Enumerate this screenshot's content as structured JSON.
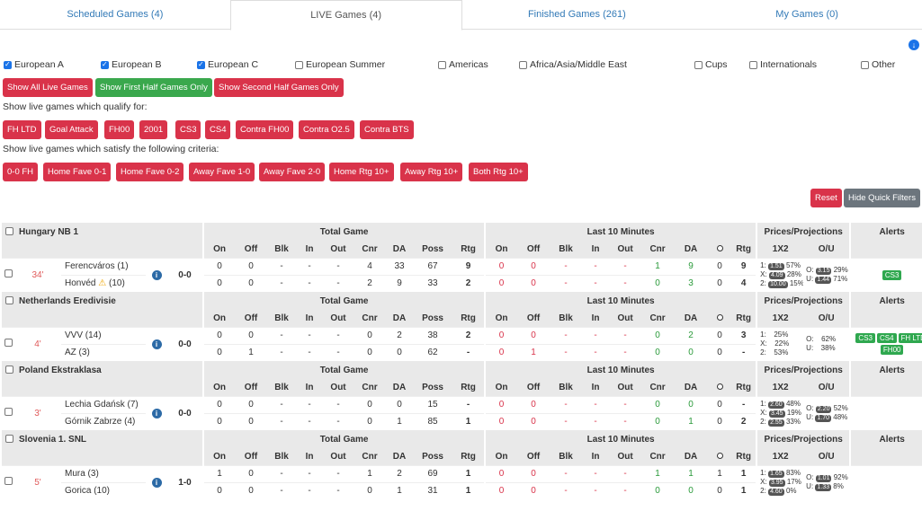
{
  "tabs": [
    {
      "label": "Scheduled Games (4)"
    },
    {
      "label": "LIVE Games (4)"
    },
    {
      "label": "Finished Games (261)"
    },
    {
      "label": "My Games (0)"
    }
  ],
  "leagues": [
    {
      "label": "European A",
      "checked": true
    },
    {
      "label": "European B",
      "checked": true
    },
    {
      "label": "European C",
      "checked": true
    },
    {
      "label": "European Summer",
      "checked": false
    },
    {
      "label": "Americas",
      "checked": false
    },
    {
      "label": "Africa/Asia/Middle East",
      "checked": false
    },
    {
      "label": "Cups",
      "checked": false
    },
    {
      "label": "Internationals",
      "checked": false
    },
    {
      "label": "Other",
      "checked": false
    }
  ],
  "half_buttons": [
    "Show All Live Games",
    "Show First Half Games Only",
    "Show Second Half Games Only"
  ],
  "qualify_label": "Show live games which qualify for:",
  "qualify_buttons": [
    "FH LTD",
    "Goal Attack",
    "FH00",
    "2001",
    "CS3",
    "CS4",
    "Contra FH00",
    "Contra O2.5",
    "Contra BTS"
  ],
  "criteria_label": "Show live games which satisfy the following criteria:",
  "criteria_buttons": [
    "0-0 FH",
    "Home Fave 0-1",
    "Home Fave 0-2",
    "Away Fave 1-0",
    "Away Fave 2-0",
    "Home Rtg 10+",
    "Away Rtg 10+",
    "Both Rtg 10+"
  ],
  "reset_label": "Reset",
  "hide_filters_label": "Hide Quick Filters",
  "headers": {
    "total_game": "Total Game",
    "last10": "Last 10 Minutes",
    "prices": "Prices/Projections",
    "alerts": "Alerts",
    "cols": [
      "On",
      "Off",
      "Blk",
      "In",
      "Out",
      "Cnr",
      "DA",
      "Poss",
      "Rtg"
    ],
    "cols10": [
      "On",
      "Off",
      "Blk",
      "In",
      "Out",
      "Cnr",
      "DA",
      "",
      "Rtg"
    ],
    "x12": "1X2",
    "ou": "O/U"
  },
  "games": [
    {
      "league": "Hungary NB 1",
      "minute": "34'",
      "score": "0-0",
      "home": {
        "team": "Ferencváros (1)",
        "tg": [
          "0",
          "0",
          "-",
          "-",
          "-",
          "4",
          "33",
          "67",
          "9"
        ],
        "l10": [
          "0",
          "0",
          "-",
          "-",
          "-",
          "1",
          "9",
          "0",
          "9"
        ]
      },
      "away": {
        "team": "Honvéd",
        "warning": true,
        "rank": "(10)",
        "tg": [
          "0",
          "0",
          "-",
          "-",
          "-",
          "2",
          "9",
          "33",
          "2"
        ],
        "l10": [
          "0",
          "0",
          "-",
          "-",
          "-",
          "0",
          "3",
          "0",
          "4"
        ]
      },
      "prices": {
        "p1": "1.51",
        "p1pct": "57%",
        "px": "4.09",
        "pxpct": "28%",
        "p2": "10.00",
        "p2pct": "15%",
        "o": "3.15",
        "opct": "29%",
        "u": "1.44",
        "upct": "71%"
      },
      "alerts": [
        "CS3"
      ]
    },
    {
      "league": "Netherlands Eredivisie",
      "minute": "4'",
      "score": "0-0",
      "home": {
        "team": "VVV (14)",
        "tg": [
          "0",
          "0",
          "-",
          "-",
          "-",
          "0",
          "2",
          "38",
          "2"
        ],
        "l10": [
          "0",
          "0",
          "-",
          "-",
          "-",
          "0",
          "2",
          "0",
          "3"
        ]
      },
      "away": {
        "team": "AZ (3)",
        "tg": [
          "0",
          "1",
          "-",
          "-",
          "-",
          "0",
          "0",
          "62",
          "-"
        ],
        "l10": [
          "0",
          "1",
          "-",
          "-",
          "-",
          "0",
          "0",
          "0",
          "-"
        ]
      },
      "prices": {
        "p1": "",
        "p1pct": "25%",
        "px": "",
        "pxpct": "22%",
        "p2": "",
        "p2pct": "53%",
        "o": "",
        "opct": "62%",
        "u": "",
        "upct": "38%"
      },
      "alerts": [
        "CS3",
        "CS4",
        "FH LTD",
        "FH00"
      ]
    },
    {
      "league": "Poland Ekstraklasa",
      "minute": "3'",
      "score": "0-0",
      "home": {
        "team": "Lechia Gdańsk (7)",
        "tg": [
          "0",
          "0",
          "-",
          "-",
          "-",
          "0",
          "0",
          "15",
          "-"
        ],
        "l10": [
          "0",
          "0",
          "-",
          "-",
          "-",
          "0",
          "0",
          "0",
          "-"
        ]
      },
      "away": {
        "team": "Górnik Zabrze (4)",
        "tg": [
          "0",
          "0",
          "-",
          "-",
          "-",
          "0",
          "1",
          "85",
          "1"
        ],
        "l10": [
          "0",
          "0",
          "-",
          "-",
          "-",
          "0",
          "1",
          "0",
          "2"
        ]
      },
      "prices": {
        "p1": "2.60",
        "p1pct": "48%",
        "px": "3.45",
        "pxpct": "19%",
        "p2": "2.55",
        "p2pct": "33%",
        "o": "2.20",
        "opct": "52%",
        "u": "1.70",
        "upct": "48%"
      },
      "alerts": []
    },
    {
      "league": "Slovenia 1. SNL",
      "minute": "5'",
      "score": "1-0",
      "home": {
        "team": "Mura (3)",
        "tg": [
          "1",
          "0",
          "-",
          "-",
          "-",
          "1",
          "2",
          "69",
          "1"
        ],
        "l10": [
          "0",
          "0",
          "-",
          "-",
          "-",
          "1",
          "1",
          "1",
          "1"
        ]
      },
      "away": {
        "team": "Gorica (10)",
        "tg": [
          "0",
          "0",
          "-",
          "-",
          "-",
          "0",
          "1",
          "31",
          "1"
        ],
        "l10": [
          "0",
          "0",
          "-",
          "-",
          "-",
          "0",
          "0",
          "0",
          "1"
        ]
      },
      "prices": {
        "p1": "1.65",
        "p1pct": "83%",
        "px": "3.95",
        "pxpct": "17%",
        "p2": "4.60",
        "p2pct": "0%",
        "o": "1.01",
        "opct": "92%",
        "u": "1.33",
        "upct": "8%"
      },
      "alerts": []
    }
  ]
}
